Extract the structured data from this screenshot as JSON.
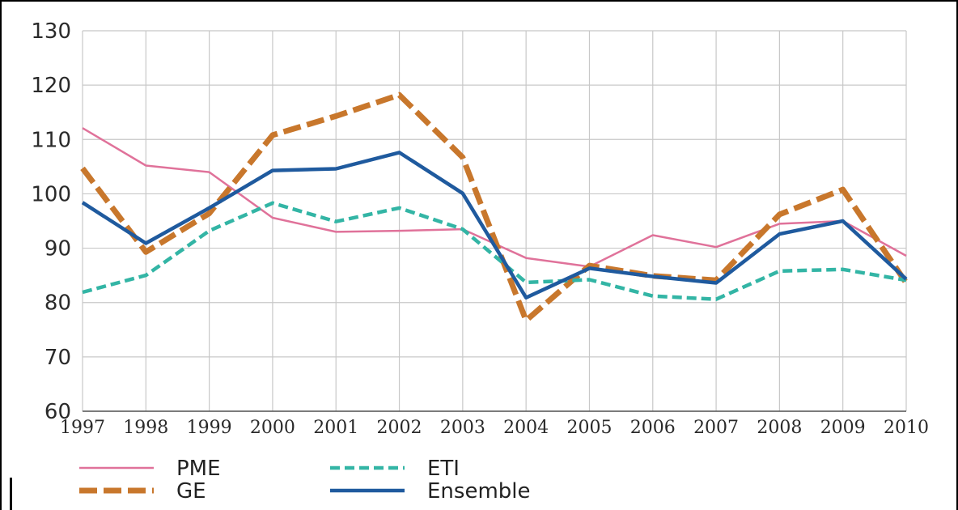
{
  "chart_data": {
    "type": "line",
    "title": "",
    "xlabel": "",
    "ylabel": "",
    "x": [
      "1997",
      "1998",
      "1999",
      "2000",
      "2001",
      "2002",
      "2003",
      "2004",
      "2005",
      "2006",
      "2007",
      "2008",
      "2009",
      "2010"
    ],
    "ylim": [
      60,
      130
    ],
    "yticks": [
      "60",
      "70",
      "80",
      "90",
      "100",
      "110",
      "120",
      "130"
    ],
    "grid": true,
    "legend_position": "bottom-left",
    "series": [
      {
        "name": "PME",
        "color": "#e0729a",
        "style": "solid",
        "values": [
          112.1,
          105.2,
          104.0,
          95.6,
          93.0,
          93.2,
          93.5,
          88.2,
          86.6,
          92.4,
          90.2,
          94.5,
          95.0,
          88.6
        ]
      },
      {
        "name": "GE",
        "color": "#c8772c",
        "style": "dashed",
        "values": [
          104.7,
          89.3,
          96.4,
          110.8,
          114.3,
          118.2,
          106.7,
          76.7,
          86.8,
          84.9,
          84.1,
          96.2,
          100.8,
          83.6
        ]
      },
      {
        "name": "ETI",
        "color": "#33b5a5",
        "style": "dashed",
        "values": [
          81.9,
          85.0,
          93.2,
          98.3,
          94.9,
          97.4,
          93.5,
          83.7,
          84.2,
          81.2,
          80.6,
          85.8,
          86.1,
          84.1
        ]
      },
      {
        "name": "Ensemble",
        "color": "#1f5a9e",
        "style": "solid",
        "values": [
          98.4,
          90.9,
          97.4,
          104.3,
          104.6,
          107.6,
          100.1,
          80.9,
          86.3,
          84.8,
          83.6,
          92.6,
          95.0,
          84.3
        ]
      }
    ]
  }
}
